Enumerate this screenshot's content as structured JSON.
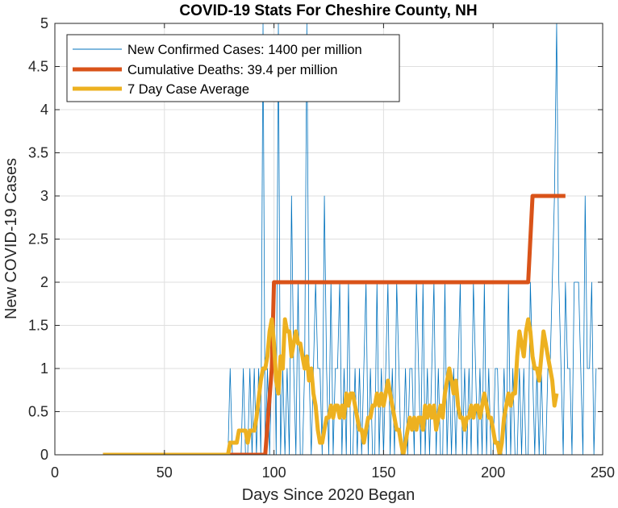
{
  "chart_data": {
    "type": "line",
    "title": "COVID-19 Stats For Cheshire County, NH",
    "xlabel": "Days Since 2020 Began",
    "ylabel": "New COVID-19 Cases",
    "xlim": [
      0,
      250
    ],
    "ylim": [
      0,
      5
    ],
    "xticks": [
      "0",
      "50",
      "100",
      "150",
      "200",
      "250"
    ],
    "yticks": [
      "0",
      "0.5",
      "1",
      "1.5",
      "2",
      "2.5",
      "3",
      "3.5",
      "4",
      "4.5",
      "5"
    ],
    "grid": true,
    "legend_position": "top-left",
    "series": [
      {
        "name": "New Confirmed Cases: 1400 per million",
        "color": "#0072BD",
        "width": 0.8,
        "x_start": 22,
        "values": [
          0,
          0,
          0,
          0,
          0,
          0,
          0,
          0,
          0,
          0,
          0,
          0,
          0,
          0,
          0,
          0,
          0,
          0,
          0,
          0,
          0,
          0,
          0,
          0,
          0,
          0,
          0,
          0,
          0,
          0,
          0,
          0,
          0,
          0,
          0,
          0,
          0,
          0,
          0,
          0,
          0,
          0,
          0,
          0,
          0,
          0,
          0,
          0,
          0,
          0,
          0,
          0,
          0,
          0,
          0,
          0,
          0,
          0,
          1,
          0,
          0,
          0,
          0,
          0,
          1,
          0,
          0,
          1,
          0,
          1,
          0,
          1,
          0,
          5,
          0,
          1,
          0,
          1,
          2,
          0,
          5,
          0,
          1,
          0,
          1,
          0,
          3,
          1,
          0,
          2,
          0,
          0,
          1,
          5,
          1,
          0,
          1,
          2,
          1,
          1,
          0,
          3,
          1,
          0,
          2,
          0,
          1,
          1,
          2,
          0,
          1,
          0,
          2,
          0,
          0,
          1,
          0,
          1,
          0,
          1,
          2,
          0,
          1,
          0,
          0,
          2,
          0,
          1,
          0,
          1,
          2,
          0,
          1,
          0,
          2,
          1,
          0,
          0,
          1,
          0,
          1,
          1,
          0,
          2,
          1,
          0,
          2,
          0,
          1,
          0,
          1,
          2,
          0,
          1,
          0,
          0,
          2,
          0,
          1,
          0,
          1,
          0,
          1,
          2,
          0,
          1,
          0,
          1,
          0,
          2,
          1,
          0,
          1,
          0,
          2,
          0,
          1,
          0,
          0,
          1,
          1,
          0,
          0,
          1,
          0,
          2,
          0,
          1,
          0,
          0,
          1,
          0,
          1,
          0,
          0,
          2,
          1,
          0,
          1,
          0,
          1,
          0,
          0,
          1,
          1,
          2,
          3,
          5,
          2,
          1,
          0,
          2,
          1,
          1,
          0,
          2,
          2,
          2,
          1,
          0,
          3,
          1,
          1,
          2,
          0,
          1
        ]
      },
      {
        "name": "Cumulative Deaths: 39.4 per million",
        "color": "#D95319",
        "width": 5,
        "points": [
          [
            22,
            0
          ],
          [
            80,
            0
          ],
          [
            96,
            0
          ],
          [
            99,
            1
          ],
          [
            100,
            2
          ],
          [
            216,
            2
          ],
          [
            218,
            3
          ],
          [
            233,
            3
          ]
        ]
      },
      {
        "name": "7 Day Case Average",
        "color": "#EDB120",
        "width": 5,
        "points": [
          [
            22,
            0
          ],
          [
            79,
            0
          ],
          [
            80,
            0.14
          ],
          [
            83,
            0.14
          ],
          [
            84,
            0.28
          ],
          [
            87,
            0.28
          ],
          [
            88,
            0.14
          ],
          [
            89,
            0.28
          ],
          [
            91,
            0.28
          ],
          [
            92,
            0.43
          ],
          [
            94,
            0.86
          ],
          [
            95,
            1.0
          ],
          [
            96,
            1.0
          ],
          [
            97,
            1.14
          ],
          [
            98,
            1.43
          ],
          [
            99,
            1.57
          ],
          [
            100,
            1.29
          ],
          [
            101,
            0.86
          ],
          [
            102,
            0.71
          ],
          [
            103,
            1.14
          ],
          [
            104,
            1.0
          ],
          [
            105,
            1.57
          ],
          [
            106,
            1.43
          ],
          [
            107,
            1.43
          ],
          [
            108,
            1.14
          ],
          [
            109,
            1.29
          ],
          [
            110,
            1.43
          ],
          [
            111,
            1.29
          ],
          [
            112,
            1.29
          ],
          [
            113,
            1.14
          ],
          [
            114,
            1.0
          ],
          [
            115,
            1.14
          ],
          [
            116,
            0.86
          ],
          [
            117,
            1.0
          ],
          [
            118,
            0.71
          ],
          [
            119,
            0.57
          ],
          [
            120,
            0.29
          ],
          [
            121,
            0.14
          ],
          [
            122,
            0.14
          ],
          [
            123,
            0.29
          ],
          [
            124,
            0.43
          ],
          [
            125,
            0.43
          ],
          [
            126,
            0.57
          ],
          [
            127,
            0.43
          ],
          [
            128,
            0.57
          ],
          [
            129,
            0.57
          ],
          [
            130,
            0.43
          ],
          [
            131,
            0.57
          ],
          [
            132,
            0.43
          ],
          [
            133,
            0.71
          ],
          [
            134,
            0.57
          ],
          [
            135,
            0.71
          ],
          [
            136,
            0.71
          ],
          [
            137,
            0.57
          ],
          [
            138,
            0.43
          ],
          [
            139,
            0.29
          ],
          [
            140,
            0.29
          ],
          [
            141,
            0.14
          ],
          [
            142,
            0.29
          ],
          [
            143,
            0.43
          ],
          [
            144,
            0.43
          ],
          [
            145,
            0.57
          ],
          [
            146,
            0.57
          ],
          [
            147,
            0.71
          ],
          [
            148,
            0.57
          ],
          [
            149,
            0.71
          ],
          [
            150,
            0.57
          ],
          [
            151,
            0.71
          ],
          [
            152,
            0.86
          ],
          [
            153,
            0.71
          ],
          [
            154,
            0.57
          ],
          [
            155,
            0.43
          ],
          [
            156,
            0.29
          ],
          [
            157,
            0.29
          ],
          [
            158,
            0.14
          ],
          [
            159,
            0
          ],
          [
            160,
            0.14
          ],
          [
            161,
            0.29
          ],
          [
            162,
            0.43
          ],
          [
            163,
            0.29
          ],
          [
            164,
            0.43
          ],
          [
            165,
            0.29
          ],
          [
            166,
            0.43
          ],
          [
            167,
            0.43
          ],
          [
            168,
            0.29
          ],
          [
            169,
            0.57
          ],
          [
            170,
            0.43
          ],
          [
            171,
            0.57
          ],
          [
            172,
            0.43
          ],
          [
            173,
            0.57
          ],
          [
            174,
            0.29
          ],
          [
            175,
            0.43
          ],
          [
            176,
            0.57
          ],
          [
            177,
            0.43
          ],
          [
            178,
            0.71
          ],
          [
            179,
            0.86
          ],
          [
            180,
            1.0
          ],
          [
            181,
            0.86
          ],
          [
            182,
            0.71
          ],
          [
            183,
            0.86
          ],
          [
            184,
            0.57
          ],
          [
            185,
            0.43
          ],
          [
            186,
            0.43
          ],
          [
            187,
            0.29
          ],
          [
            188,
            0.43
          ],
          [
            189,
            0.43
          ],
          [
            190,
            0.57
          ],
          [
            191,
            0.43
          ],
          [
            192,
            0.57
          ],
          [
            193,
            0.57
          ],
          [
            194,
            0.43
          ],
          [
            195,
            0.57
          ],
          [
            196,
            0.71
          ],
          [
            197,
            0.57
          ],
          [
            198,
            0.43
          ],
          [
            199,
            0.43
          ],
          [
            200,
            0.29
          ],
          [
            201,
            0.14
          ],
          [
            202,
            0.14
          ],
          [
            203,
            0
          ],
          [
            204,
            0.14
          ],
          [
            205,
            0.43
          ],
          [
            206,
            0.57
          ],
          [
            207,
            0.71
          ],
          [
            208,
            0.57
          ],
          [
            209,
            0.71
          ],
          [
            210,
            0.71
          ],
          [
            211,
            1.14
          ],
          [
            212,
            1.43
          ],
          [
            213,
            1.29
          ],
          [
            214,
            1.14
          ],
          [
            215,
            1.43
          ],
          [
            216,
            1.57
          ],
          [
            217,
            1.43
          ],
          [
            218,
            1.14
          ],
          [
            219,
            1.0
          ],
          [
            220,
            1.0
          ],
          [
            221,
            0.86
          ],
          [
            222,
            1.14
          ],
          [
            223,
            1.43
          ],
          [
            224,
            1.29
          ],
          [
            225,
            1.14
          ],
          [
            226,
            1.0
          ],
          [
            227,
            0.86
          ],
          [
            228,
            0.57
          ],
          [
            229,
            0.71
          ]
        ]
      }
    ]
  }
}
